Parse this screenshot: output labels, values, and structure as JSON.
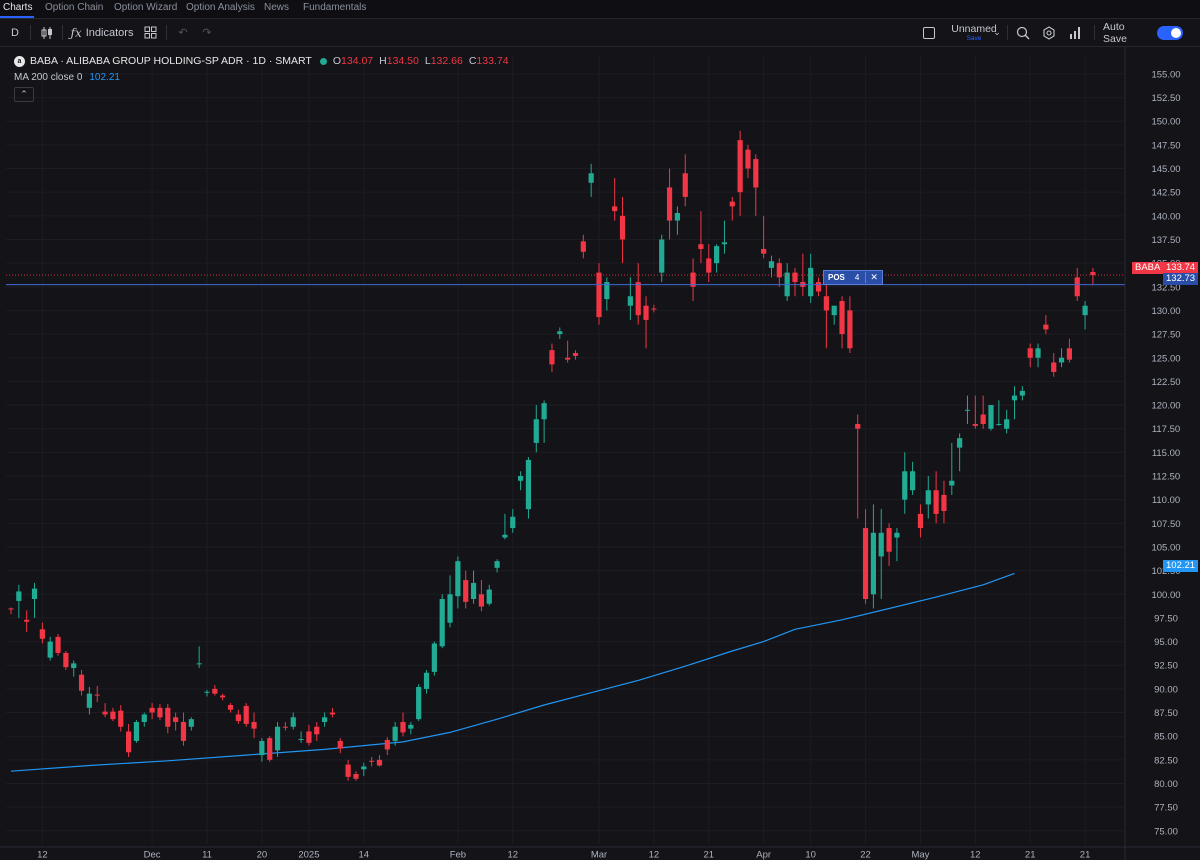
{
  "nav": {
    "tabs": [
      "Charts",
      "Option Chain",
      "Option Wizard",
      "Option Analysis",
      "News",
      "Fundamentals"
    ],
    "active": "Charts"
  },
  "toolbar": {
    "interval": "D",
    "indicators_label": "Indicators",
    "layout_name": "Unnamed",
    "layout_sub": "Save",
    "autosave_label": "Auto Save",
    "autosave_on": true
  },
  "legend": {
    "symbol_title": "BABA · ALIBABA GROUP HOLDING-SP ADR · 1D · SMART",
    "o_label": "O",
    "o": "134.07",
    "h_label": "H",
    "h": "134.50",
    "l_label": "L",
    "l": "132.66",
    "c_label": "C",
    "c": "133.74",
    "ma_label": "MA 200 close 0",
    "ma_value": "102.21",
    "collapse_glyph": "⌃"
  },
  "position": {
    "label": "POS",
    "qty": "4",
    "close_glyph": "✕"
  },
  "price_tags": {
    "symbol": "BABA",
    "last": "133.74",
    "position_price": "132.73",
    "ma": "102.21"
  },
  "colors": {
    "up": "#22ab94",
    "down": "#f23645",
    "ma": "#2196f3",
    "position_line": "#3d6bd4",
    "background": "#131318"
  },
  "chart_data": {
    "type": "candlestick",
    "symbol": "BABA",
    "interval": "1D",
    "ylim": [
      73.5,
      157
    ],
    "y_ticks": [
      75,
      77.5,
      80,
      82.5,
      85,
      87.5,
      90,
      92.5,
      95,
      97.5,
      100,
      102.5,
      105,
      107.5,
      110,
      112.5,
      115,
      117.5,
      120,
      122.5,
      125,
      127.5,
      130,
      132.5,
      135,
      137.5,
      140,
      142.5,
      145,
      147.5,
      150,
      152.5,
      155
    ],
    "x_ticks": [
      {
        "label": "12",
        "i": 4
      },
      {
        "label": "Dec",
        "i": 18
      },
      {
        "label": "11",
        "i": 25
      },
      {
        "label": "20",
        "i": 32
      },
      {
        "label": "2025",
        "i": 38
      },
      {
        "label": "14",
        "i": 45
      },
      {
        "label": "Feb",
        "i": 57
      },
      {
        "label": "12",
        "i": 64
      },
      {
        "label": "Mar",
        "i": 75
      },
      {
        "label": "12",
        "i": 82
      },
      {
        "label": "21",
        "i": 89
      },
      {
        "label": "Apr",
        "i": 96
      },
      {
        "label": "10",
        "i": 102
      },
      {
        "label": "22",
        "i": 109
      },
      {
        "label": "May",
        "i": 116
      },
      {
        "label": "12",
        "i": 123
      },
      {
        "label": "21",
        "i": 130
      },
      {
        "label": "21",
        "i": 137
      }
    ],
    "candles": [
      [
        98.5,
        98.6,
        97.9,
        98.4
      ],
      [
        99.3,
        101.0,
        97.5,
        100.3
      ],
      [
        97.3,
        98.3,
        96.0,
        97.1
      ],
      [
        99.5,
        101.2,
        97.5,
        100.6
      ],
      [
        96.3,
        97.0,
        94.8,
        95.3
      ],
      [
        93.3,
        95.5,
        93.0,
        95.0
      ],
      [
        95.5,
        95.8,
        93.5,
        93.8
      ],
      [
        93.8,
        94.0,
        92.0,
        92.3
      ],
      [
        92.2,
        93.0,
        91.3,
        92.7
      ],
      [
        91.5,
        92.0,
        89.3,
        89.8
      ],
      [
        88.0,
        90.2,
        87.3,
        89.5
      ],
      [
        89.4,
        90.3,
        88.6,
        89.3
      ],
      [
        87.6,
        88.5,
        87.0,
        87.3
      ],
      [
        87.6,
        88.0,
        86.6,
        86.8
      ],
      [
        87.7,
        88.3,
        85.5,
        86.0
      ],
      [
        85.5,
        86.3,
        82.8,
        83.3
      ],
      [
        84.5,
        86.7,
        84.3,
        86.5
      ],
      [
        86.5,
        87.5,
        86.0,
        87.3
      ],
      [
        88.0,
        88.5,
        86.8,
        87.5
      ],
      [
        88.0,
        88.4,
        86.7,
        87.0
      ],
      [
        88.0,
        88.4,
        85.3,
        86.0
      ],
      [
        87.0,
        87.5,
        85.6,
        86.5
      ],
      [
        86.5,
        87.5,
        84.0,
        84.5
      ],
      [
        86.0,
        87.0,
        85.6,
        86.8
      ],
      [
        92.6,
        94.5,
        92.2,
        92.7
      ],
      [
        89.6,
        89.9,
        89.2,
        89.7
      ],
      [
        90.0,
        90.4,
        89.3,
        89.5
      ],
      [
        89.3,
        89.5,
        88.8,
        89.1
      ],
      [
        88.3,
        88.5,
        87.5,
        87.8
      ],
      [
        87.3,
        87.8,
        86.3,
        86.6
      ],
      [
        88.2,
        88.5,
        86.0,
        86.3
      ],
      [
        86.5,
        87.5,
        84.8,
        85.8
      ],
      [
        83.0,
        84.8,
        82.3,
        84.5
      ],
      [
        84.8,
        85.0,
        82.3,
        82.5
      ],
      [
        83.5,
        86.5,
        82.8,
        86.0
      ],
      [
        86.0,
        86.5,
        85.6,
        85.9
      ],
      [
        86.0,
        87.5,
        85.7,
        87.0
      ],
      [
        84.7,
        85.5,
        84.3,
        84.7
      ],
      [
        85.5,
        86.2,
        84.0,
        84.3
      ],
      [
        86.0,
        86.5,
        84.5,
        85.2
      ],
      [
        86.5,
        87.5,
        86.0,
        87.0
      ],
      [
        87.5,
        88.0,
        87.0,
        87.3
      ],
      [
        84.5,
        84.8,
        83.2,
        83.7
      ],
      [
        82.0,
        82.5,
        80.3,
        80.7
      ],
      [
        81.0,
        81.3,
        80.3,
        80.5
      ],
      [
        81.5,
        82.2,
        80.8,
        81.8
      ],
      [
        82.4,
        82.8,
        81.8,
        82.3
      ],
      [
        82.5,
        83.0,
        81.8,
        81.9
      ],
      [
        84.6,
        84.9,
        83.0,
        83.6
      ],
      [
        84.5,
        86.5,
        84.0,
        86.0
      ],
      [
        86.5,
        87.5,
        85.0,
        85.4
      ],
      [
        85.8,
        86.5,
        85.2,
        86.2
      ],
      [
        86.8,
        90.5,
        86.6,
        90.2
      ],
      [
        90.0,
        92.0,
        89.5,
        91.7
      ],
      [
        91.8,
        95.0,
        91.4,
        94.8
      ],
      [
        94.5,
        100.0,
        94.3,
        99.5
      ],
      [
        97.0,
        102.0,
        96.5,
        100.0
      ],
      [
        99.8,
        104.0,
        98.5,
        103.5
      ],
      [
        101.5,
        102.5,
        98.5,
        99.2
      ],
      [
        99.5,
        102.5,
        99.0,
        101.2
      ],
      [
        100.0,
        101.5,
        98.2,
        98.7
      ],
      [
        99.0,
        101.0,
        98.8,
        100.5
      ],
      [
        102.8,
        103.7,
        102.3,
        103.5
      ],
      [
        106.0,
        108.5,
        105.8,
        106.3
      ],
      [
        107.0,
        109.0,
        106.5,
        108.2
      ],
      [
        112.0,
        113.0,
        111.0,
        112.5
      ],
      [
        109.0,
        114.5,
        108.0,
        114.2
      ],
      [
        116.0,
        120.0,
        115.0,
        118.5
      ],
      [
        118.5,
        120.5,
        116.0,
        120.2
      ],
      [
        125.8,
        126.5,
        123.5,
        124.3
      ],
      [
        127.5,
        128.2,
        127.0,
        127.8
      ],
      [
        125.0,
        126.8,
        124.5,
        124.8
      ],
      [
        125.5,
        125.8,
        124.8,
        125.2
      ],
      [
        137.3,
        138.0,
        135.5,
        136.2
      ],
      [
        143.5,
        145.5,
        142.0,
        144.5
      ],
      [
        134.0,
        135.0,
        128.5,
        129.3
      ],
      [
        131.2,
        133.5,
        130.0,
        133.0
      ],
      [
        141.0,
        144.0,
        139.5,
        140.5
      ],
      [
        140.0,
        142.0,
        135.0,
        137.5
      ],
      [
        130.5,
        133.5,
        129.0,
        131.5
      ],
      [
        133.0,
        135.0,
        128.5,
        129.5
      ],
      [
        130.5,
        131.5,
        126.0,
        129.0
      ],
      [
        130.2,
        130.6,
        129.8,
        130.1
      ],
      [
        134.0,
        138.0,
        133.0,
        137.5
      ],
      [
        143.0,
        145.0,
        137.5,
        139.5
      ],
      [
        139.5,
        141.0,
        138.0,
        140.3
      ],
      [
        144.5,
        146.5,
        141.0,
        142.0
      ],
      [
        134.0,
        135.5,
        131.0,
        132.5
      ],
      [
        137.0,
        140.5,
        135.0,
        136.5
      ],
      [
        135.5,
        137.0,
        133.0,
        134.0
      ],
      [
        135.0,
        137.0,
        134.0,
        136.8
      ],
      [
        137.0,
        139.5,
        136.0,
        137.2
      ],
      [
        141.5,
        142.0,
        139.5,
        141.0
      ],
      [
        148.0,
        149.0,
        140.0,
        142.5
      ],
      [
        147.0,
        147.5,
        144.0,
        145.0
      ],
      [
        146.0,
        146.5,
        140.0,
        143.0
      ],
      [
        136.5,
        140.0,
        135.5,
        136.0
      ],
      [
        134.5,
        135.8,
        133.5,
        135.2
      ],
      [
        135.0,
        135.5,
        132.5,
        133.5
      ],
      [
        131.5,
        135.0,
        131.0,
        134.0
      ],
      [
        134.0,
        134.5,
        131.5,
        133.0
      ],
      [
        133.0,
        136.0,
        131.5,
        132.5
      ],
      [
        131.5,
        136.0,
        130.8,
        134.5
      ],
      [
        133.0,
        133.5,
        131.5,
        132.0
      ],
      [
        131.5,
        133.5,
        126.0,
        130.0
      ],
      [
        129.5,
        130.5,
        128.5,
        130.5
      ],
      [
        131.0,
        131.5,
        126.0,
        127.5
      ],
      [
        130.0,
        131.5,
        125.5,
        126.0
      ],
      [
        118.0,
        119.0,
        108.0,
        117.5
      ],
      [
        107.0,
        109.0,
        99.0,
        99.5
      ],
      [
        100.0,
        109.5,
        98.5,
        106.5
      ],
      [
        104.0,
        109.0,
        99.5,
        106.5
      ],
      [
        107.0,
        107.5,
        103.0,
        104.5
      ],
      [
        106.0,
        107.0,
        103.5,
        106.5
      ],
      [
        110.0,
        115.0,
        108.5,
        113.0
      ],
      [
        111.0,
        114.0,
        110.5,
        113.0
      ],
      [
        108.5,
        109.5,
        106.0,
        107.0
      ],
      [
        109.5,
        112.5,
        108.0,
        111.0
      ],
      [
        111.0,
        113.0,
        107.5,
        108.5
      ],
      [
        110.5,
        112.0,
        107.5,
        108.8
      ],
      [
        111.5,
        116.0,
        110.5,
        112.0
      ],
      [
        115.5,
        117.0,
        113.0,
        116.5
      ],
      [
        119.5,
        121.0,
        118.0,
        119.5
      ],
      [
        118.0,
        121.0,
        117.5,
        117.8
      ],
      [
        119.0,
        121.0,
        117.5,
        118.0
      ],
      [
        117.5,
        120.0,
        117.3,
        120.0
      ],
      [
        118.0,
        120.5,
        117.8,
        118.0
      ],
      [
        117.5,
        119.5,
        117.0,
        118.5
      ],
      [
        120.5,
        122.0,
        118.5,
        121.0
      ],
      [
        121.0,
        122.0,
        120.5,
        121.5
      ],
      [
        126.0,
        126.5,
        124.0,
        125.0
      ],
      [
        125.0,
        126.5,
        124.0,
        126.0
      ],
      [
        128.5,
        129.5,
        127.5,
        128.0
      ],
      [
        124.5,
        125.5,
        123.0,
        123.5
      ],
      [
        124.5,
        126.0,
        124.0,
        125.0
      ],
      [
        126.0,
        127.0,
        124.5,
        124.8
      ],
      [
        133.5,
        134.5,
        131.0,
        131.5
      ],
      [
        129.5,
        131.0,
        128.0,
        130.5
      ],
      [
        134.07,
        134.5,
        132.66,
        133.74
      ]
    ],
    "ma200": [
      [
        0,
        81.3
      ],
      [
        10,
        81.9
      ],
      [
        20,
        82.4
      ],
      [
        30,
        83.0
      ],
      [
        40,
        83.6
      ],
      [
        50,
        84.4
      ],
      [
        56,
        85.4
      ],
      [
        62,
        86.8
      ],
      [
        68,
        88.3
      ],
      [
        74,
        89.6
      ],
      [
        80,
        90.9
      ],
      [
        86,
        92.4
      ],
      [
        92,
        94.0
      ],
      [
        96,
        95.0
      ],
      [
        100,
        96.3
      ],
      [
        106,
        97.3
      ],
      [
        112,
        98.5
      ],
      [
        118,
        99.7
      ],
      [
        124,
        101.0
      ],
      [
        128,
        102.21
      ]
    ],
    "position_price": 132.73,
    "last_price": 133.74
  }
}
